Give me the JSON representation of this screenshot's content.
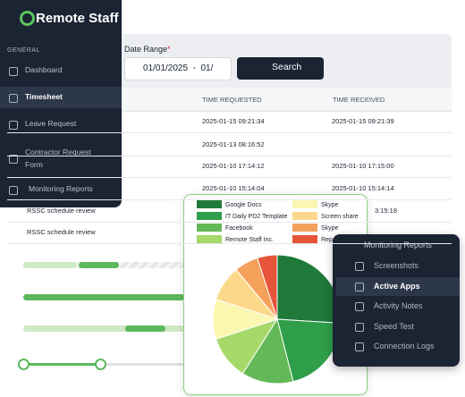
{
  "logo": "Remote Staff",
  "sidebar": {
    "section": "GENERAL",
    "items": [
      "Dashboard",
      "Timesheet",
      "Leave Request",
      "Contractor Request Form",
      "Monitoring Reports"
    ]
  },
  "filter": {
    "label": "Date Range",
    "required": "*",
    "date_value": "01/01/2025  -  01/",
    "button": "Search"
  },
  "table": {
    "headers": [
      "TIME REQUESTED",
      "TIME RECEIVED"
    ],
    "rows": [
      [
        null,
        "2025-01-15 09:21:34",
        "2025-01-15 09:21:39"
      ],
      [
        null,
        "2025-01-13 08:16:52",
        null
      ],
      [
        null,
        "2025-01-10 17:14:12",
        "2025-01-10 17:15:00"
      ],
      [
        null,
        "2025-01-10 15:14:04",
        "2025-01-10 15:14:14"
      ],
      [
        "RSSC schedule review",
        null,
        "3:15:18"
      ],
      [
        "RSSC schedule review",
        null,
        null
      ]
    ]
  },
  "chart_data": {
    "type": "pie",
    "categories": [
      "Google Docs",
      "IT Daily PD2 Template",
      "Facebook",
      "Remote Staff Inc.",
      "Skype",
      "Screen share",
      "Skype",
      "Rep"
    ],
    "values": [
      26,
      20,
      13,
      11,
      10,
      9,
      6,
      5
    ],
    "colors": [
      "#1f7a3a",
      "#2f9e4a",
      "#63b857",
      "#a6d96a",
      "#fbf7b0",
      "#fcd98a",
      "#f4a15c",
      "#e6553a"
    ]
  },
  "dropdown": {
    "title": "Monitoring Reports",
    "items": [
      "Screenshots",
      "Active Apps",
      "Activity Notes",
      "Speed Test",
      "Connection Logs"
    ]
  }
}
